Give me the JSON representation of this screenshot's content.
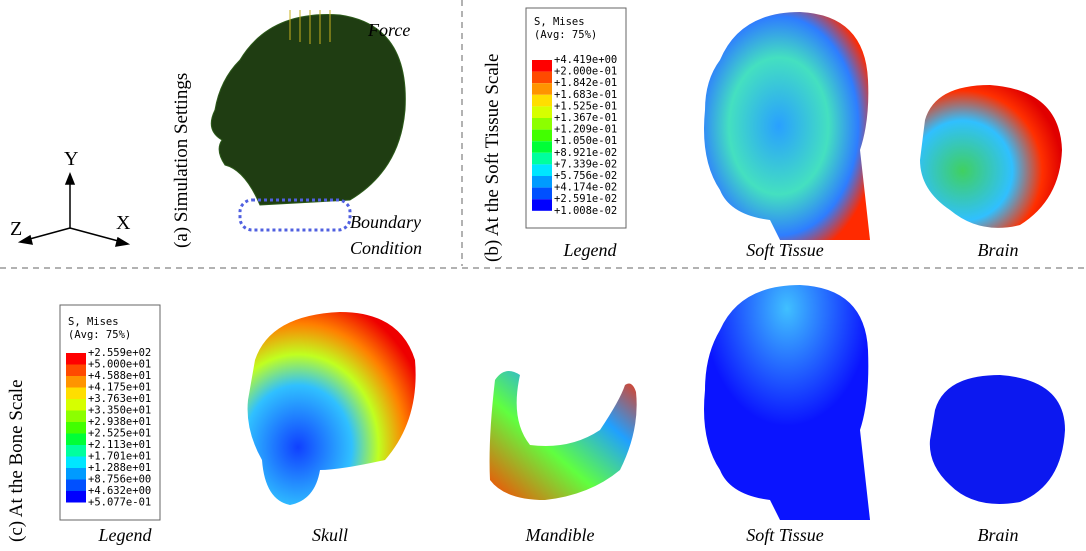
{
  "axes": {
    "y": "Y",
    "x": "X",
    "z": "Z"
  },
  "panel_a": {
    "caption": "(a) Simulation Settings",
    "force": "Force",
    "boundary": [
      "Boundary",
      "Condition"
    ]
  },
  "panel_b": {
    "caption": "(b) At the Soft Tissue Scale",
    "legend": {
      "title": "S, Mises",
      "subtitle": "(Avg: 75%)",
      "labels": [
        "+4.419e+00",
        "+2.000e-01",
        "+1.842e-01",
        "+1.683e-01",
        "+1.525e-01",
        "+1.367e-01",
        "+1.209e-01",
        "+1.050e-01",
        "+8.921e-02",
        "+7.339e-02",
        "+5.756e-02",
        "+4.174e-02",
        "+2.591e-02",
        "+1.008e-02"
      ]
    },
    "items": [
      "Legend",
      "Soft Tissue",
      "Brain"
    ]
  },
  "panel_c": {
    "caption": "(c) At the Bone Scale",
    "legend": {
      "title": "S, Mises",
      "subtitle": "(Avg: 75%)",
      "labels": [
        "+2.559e+02",
        "+5.000e+01",
        "+4.588e+01",
        "+4.175e+01",
        "+3.763e+01",
        "+3.350e+01",
        "+2.938e+01",
        "+2.525e+01",
        "+2.113e+01",
        "+1.701e+01",
        "+1.288e+01",
        "+8.756e+00",
        "+4.632e+00",
        "+5.077e-01"
      ]
    },
    "items": [
      "Legend",
      "Skull",
      "Mandible",
      "Soft Tissue",
      "Brain"
    ]
  },
  "legend_colors": [
    "#ff0000",
    "#ff4a00",
    "#ff9400",
    "#ffde00",
    "#d6ff00",
    "#8cff00",
    "#42ff00",
    "#00ff37",
    "#00ff9e",
    "#00e6ff",
    "#009bff",
    "#0050ff",
    "#0000ff"
  ]
}
